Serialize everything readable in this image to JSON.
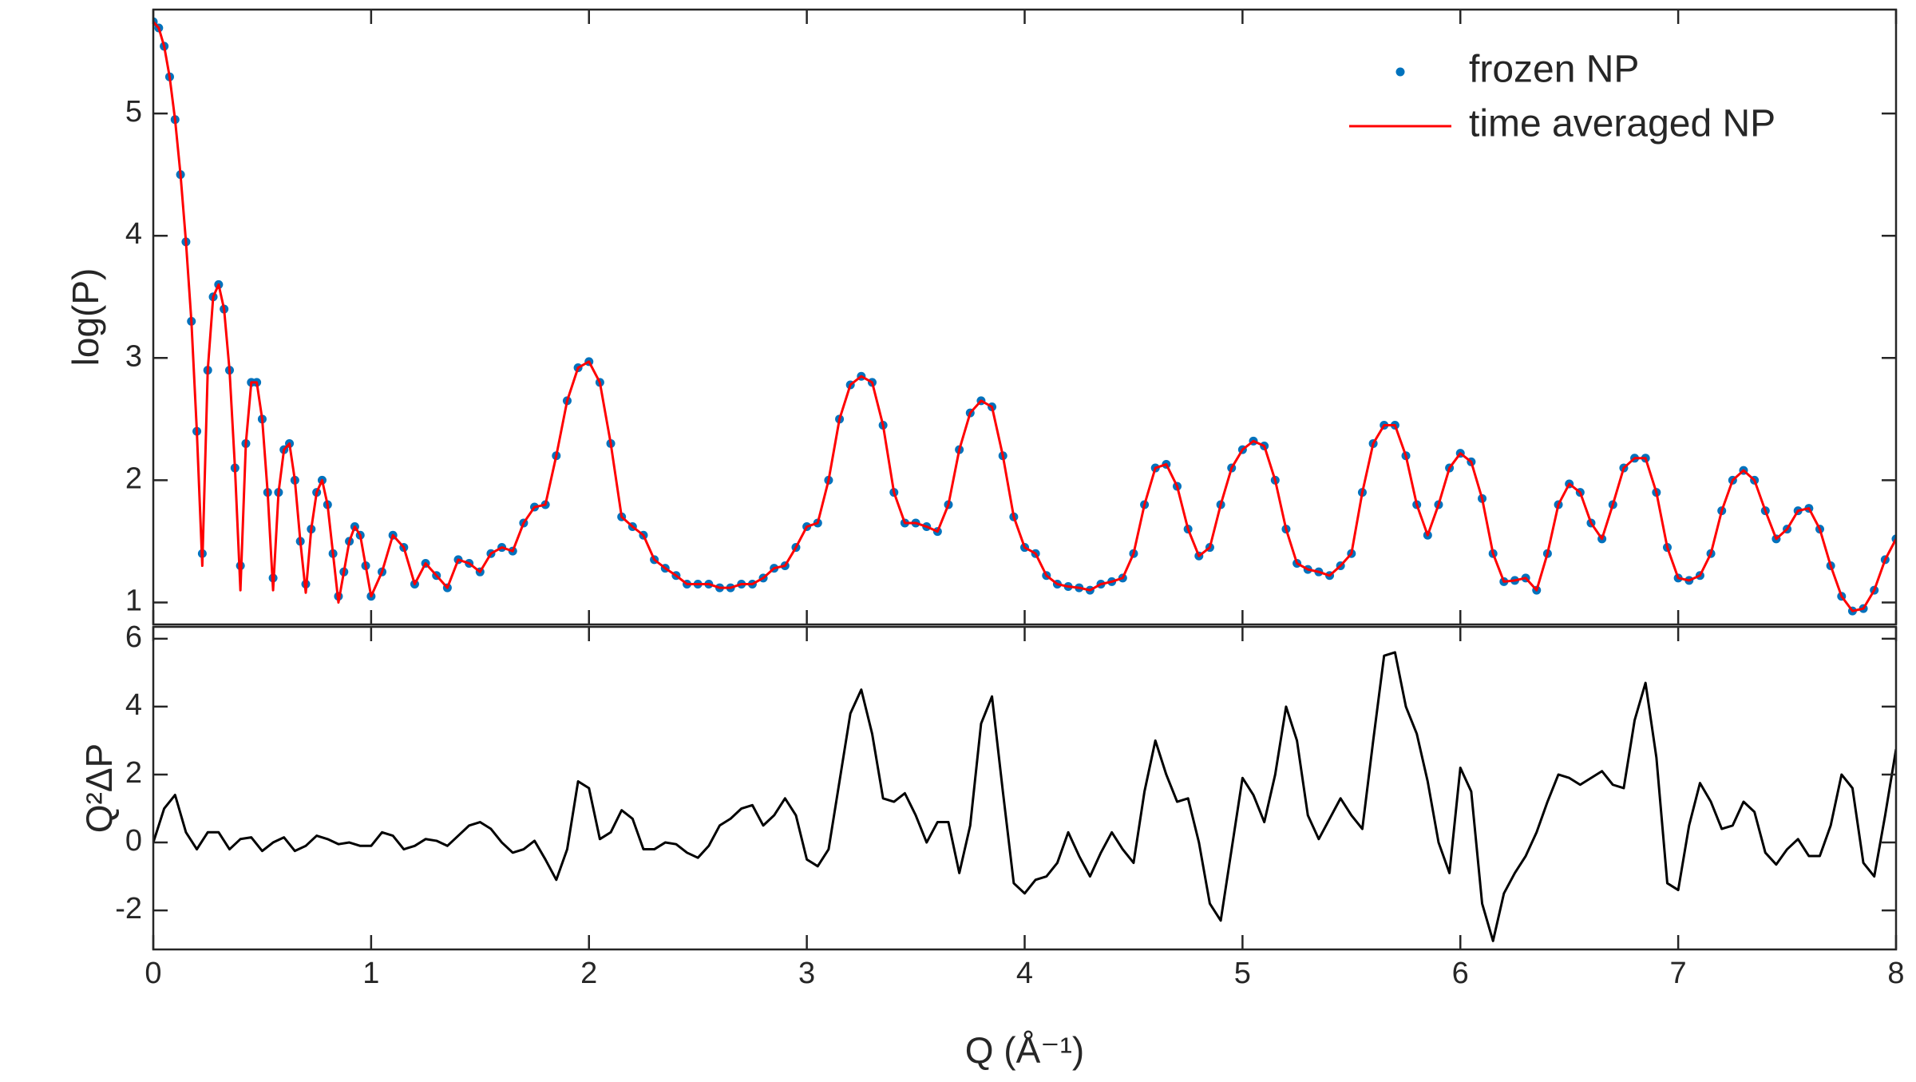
{
  "chart_data": [
    {
      "type": "line",
      "ylabel": "log(P)",
      "x": [
        0,
        0.025,
        0.05,
        0.075,
        0.1,
        0.125,
        0.15,
        0.175,
        0.2,
        0.225,
        0.25,
        0.275,
        0.3,
        0.325,
        0.35,
        0.375,
        0.4,
        0.425,
        0.45,
        0.475,
        0.5,
        0.525,
        0.55,
        0.575,
        0.6,
        0.625,
        0.65,
        0.675,
        0.7,
        0.725,
        0.75,
        0.775,
        0.8,
        0.825,
        0.85,
        0.875,
        0.9,
        0.925,
        0.95,
        0.975,
        1,
        1.05,
        1.1,
        1.15,
        1.2,
        1.25,
        1.3,
        1.35,
        1.4,
        1.45,
        1.5,
        1.55,
        1.6,
        1.65,
        1.7,
        1.75,
        1.8,
        1.85,
        1.9,
        1.95,
        2,
        2.05,
        2.1,
        2.15,
        2.2,
        2.25,
        2.3,
        2.35,
        2.4,
        2.45,
        2.5,
        2.55,
        2.6,
        2.65,
        2.7,
        2.75,
        2.8,
        2.85,
        2.9,
        2.95,
        3,
        3.05,
        3.1,
        3.15,
        3.2,
        3.25,
        3.3,
        3.35,
        3.4,
        3.45,
        3.5,
        3.55,
        3.6,
        3.65,
        3.7,
        3.75,
        3.8,
        3.85,
        3.9,
        3.95,
        4,
        4.05,
        4.1,
        4.15,
        4.2,
        4.25,
        4.3,
        4.35,
        4.4,
        4.45,
        4.5,
        4.55,
        4.6,
        4.65,
        4.7,
        4.75,
        4.8,
        4.85,
        4.9,
        4.95,
        5,
        5.05,
        5.1,
        5.15,
        5.2,
        5.25,
        5.3,
        5.35,
        5.4,
        5.45,
        5.5,
        5.55,
        5.6,
        5.65,
        5.7,
        5.75,
        5.8,
        5.85,
        5.9,
        5.95,
        6,
        6.05,
        6.1,
        6.15,
        6.2,
        6.25,
        6.3,
        6.35,
        6.4,
        6.45,
        6.5,
        6.55,
        6.6,
        6.65,
        6.7,
        6.75,
        6.8,
        6.85,
        6.9,
        6.95,
        7,
        7.05,
        7.1,
        7.15,
        7.2,
        7.25,
        7.3,
        7.35,
        7.4,
        7.45,
        7.5,
        7.55,
        7.6,
        7.65,
        7.7,
        7.75,
        7.8,
        7.85,
        7.9,
        7.95,
        8
      ],
      "series": [
        {
          "name": "frozen NP",
          "color": "#0072bd",
          "style": "markers",
          "values": [
            5.75,
            5.7,
            5.55,
            5.3,
            4.95,
            4.5,
            3.95,
            3.3,
            2.4,
            1.4,
            2.9,
            3.5,
            3.6,
            3.4,
            2.9,
            2.1,
            1.3,
            2.3,
            2.8,
            2.8,
            2.5,
            1.9,
            1.2,
            1.9,
            2.25,
            2.3,
            2.0,
            1.5,
            1.15,
            1.6,
            1.9,
            2.0,
            1.8,
            1.4,
            1.05,
            1.25,
            1.5,
            1.62,
            1.55,
            1.3,
            1.05,
            1.25,
            1.55,
            1.45,
            1.15,
            1.32,
            1.22,
            1.12,
            1.35,
            1.32,
            1.25,
            1.4,
            1.45,
            1.42,
            1.65,
            1.78,
            1.8,
            2.2,
            2.65,
            2.92,
            2.97,
            2.8,
            2.3,
            1.7,
            1.62,
            1.55,
            1.35,
            1.28,
            1.22,
            1.15,
            1.15,
            1.15,
            1.12,
            1.12,
            1.15,
            1.15,
            1.2,
            1.28,
            1.3,
            1.45,
            1.62,
            1.65,
            2.0,
            2.5,
            2.78,
            2.85,
            2.8,
            2.45,
            1.9,
            1.65,
            1.65,
            1.62,
            1.58,
            1.8,
            2.25,
            2.55,
            2.65,
            2.6,
            2.2,
            1.7,
            1.45,
            1.4,
            1.22,
            1.15,
            1.13,
            1.12,
            1.1,
            1.15,
            1.17,
            1.2,
            1.4,
            1.8,
            2.1,
            2.13,
            1.95,
            1.6,
            1.38,
            1.45,
            1.8,
            2.1,
            2.25,
            2.32,
            2.28,
            2.0,
            1.6,
            1.32,
            1.27,
            1.25,
            1.22,
            1.3,
            1.4,
            1.9,
            2.3,
            2.45,
            2.45,
            2.2,
            1.8,
            1.55,
            1.8,
            2.1,
            2.22,
            2.15,
            1.85,
            1.4,
            1.17,
            1.18,
            1.2,
            1.1,
            1.4,
            1.8,
            1.97,
            1.9,
            1.65,
            1.52,
            1.8,
            2.1,
            2.18,
            2.18,
            1.9,
            1.45,
            1.2,
            1.18,
            1.22,
            1.4,
            1.75,
            2.0,
            2.08,
            2.0,
            1.75,
            1.52,
            1.6,
            1.75,
            1.77,
            1.6,
            1.3,
            1.05,
            0.93,
            0.95,
            1.1,
            1.35,
            1.52
          ]
        },
        {
          "name": "time averaged NP",
          "color": "#ff0000",
          "style": "line",
          "values": [
            5.75,
            5.7,
            5.55,
            5.3,
            4.95,
            4.5,
            3.95,
            3.3,
            2.4,
            1.3,
            2.9,
            3.5,
            3.6,
            3.4,
            2.9,
            2.1,
            1.1,
            2.3,
            2.8,
            2.8,
            2.5,
            1.9,
            1.1,
            1.9,
            2.25,
            2.3,
            2.0,
            1.5,
            1.08,
            1.6,
            1.9,
            2.0,
            1.8,
            1.4,
            1.0,
            1.25,
            1.5,
            1.62,
            1.55,
            1.3,
            1.05,
            1.25,
            1.55,
            1.45,
            1.15,
            1.32,
            1.22,
            1.12,
            1.35,
            1.32,
            1.25,
            1.4,
            1.45,
            1.42,
            1.65,
            1.78,
            1.8,
            2.2,
            2.65,
            2.92,
            2.97,
            2.8,
            2.3,
            1.7,
            1.62,
            1.55,
            1.35,
            1.28,
            1.22,
            1.15,
            1.15,
            1.15,
            1.12,
            1.12,
            1.15,
            1.15,
            1.2,
            1.28,
            1.3,
            1.45,
            1.62,
            1.65,
            2.0,
            2.5,
            2.78,
            2.85,
            2.8,
            2.45,
            1.9,
            1.65,
            1.65,
            1.62,
            1.58,
            1.8,
            2.25,
            2.55,
            2.65,
            2.6,
            2.2,
            1.7,
            1.45,
            1.4,
            1.22,
            1.15,
            1.13,
            1.12,
            1.1,
            1.15,
            1.17,
            1.2,
            1.4,
            1.8,
            2.1,
            2.13,
            1.95,
            1.6,
            1.38,
            1.45,
            1.8,
            2.1,
            2.25,
            2.32,
            2.28,
            2.0,
            1.6,
            1.32,
            1.27,
            1.25,
            1.22,
            1.3,
            1.4,
            1.9,
            2.3,
            2.45,
            2.45,
            2.2,
            1.8,
            1.55,
            1.8,
            2.1,
            2.22,
            2.15,
            1.85,
            1.4,
            1.17,
            1.18,
            1.2,
            1.1,
            1.4,
            1.8,
            1.97,
            1.9,
            1.65,
            1.52,
            1.8,
            2.1,
            2.18,
            2.18,
            1.9,
            1.45,
            1.2,
            1.18,
            1.22,
            1.4,
            1.75,
            2.0,
            2.08,
            2.0,
            1.75,
            1.52,
            1.6,
            1.75,
            1.77,
            1.6,
            1.3,
            1.05,
            0.93,
            0.95,
            1.1,
            1.35,
            1.52
          ]
        }
      ],
      "xlim": [
        0,
        8
      ],
      "ylim": [
        0.82,
        5.85
      ],
      "xticks": [
        0,
        1,
        2,
        3,
        4,
        5,
        6,
        7,
        8
      ],
      "xticklabels": false,
      "yticks": [
        1,
        2,
        3,
        4,
        5
      ],
      "legend": "upper right"
    },
    {
      "type": "line",
      "ylabel": "Q²ΔP",
      "xlabel": "Q (Å⁻¹)",
      "x": [
        0,
        0.05,
        0.1,
        0.15,
        0.2,
        0.25,
        0.3,
        0.35,
        0.4,
        0.45,
        0.5,
        0.55,
        0.6,
        0.65,
        0.7,
        0.75,
        0.8,
        0.85,
        0.9,
        0.95,
        1,
        1.05,
        1.1,
        1.15,
        1.2,
        1.25,
        1.3,
        1.35,
        1.4,
        1.45,
        1.5,
        1.55,
        1.6,
        1.65,
        1.7,
        1.75,
        1.8,
        1.85,
        1.9,
        1.95,
        2,
        2.05,
        2.1,
        2.15,
        2.2,
        2.25,
        2.3,
        2.35,
        2.4,
        2.45,
        2.5,
        2.55,
        2.6,
        2.65,
        2.7,
        2.75,
        2.8,
        2.85,
        2.9,
        2.95,
        3,
        3.05,
        3.1,
        3.15,
        3.2,
        3.25,
        3.3,
        3.35,
        3.4,
        3.45,
        3.5,
        3.55,
        3.6,
        3.65,
        3.7,
        3.75,
        3.8,
        3.85,
        3.9,
        3.95,
        4,
        4.05,
        4.1,
        4.15,
        4.2,
        4.25,
        4.3,
        4.35,
        4.4,
        4.45,
        4.5,
        4.55,
        4.6,
        4.65,
        4.7,
        4.75,
        4.8,
        4.85,
        4.9,
        4.95,
        5,
        5.05,
        5.1,
        5.15,
        5.2,
        5.25,
        5.3,
        5.35,
        5.4,
        5.45,
        5.5,
        5.55,
        5.6,
        5.65,
        5.7,
        5.75,
        5.8,
        5.85,
        5.9,
        5.95,
        6,
        6.05,
        6.1,
        6.15,
        6.2,
        6.25,
        6.3,
        6.35,
        6.4,
        6.45,
        6.5,
        6.55,
        6.6,
        6.65,
        6.7,
        6.75,
        6.8,
        6.85,
        6.9,
        6.95,
        7,
        7.05,
        7.1,
        7.15,
        7.2,
        7.25,
        7.3,
        7.35,
        7.4,
        7.45,
        7.5,
        7.55,
        7.6,
        7.65,
        7.7,
        7.75,
        7.8,
        7.85,
        7.9,
        7.95,
        8
      ],
      "series": [
        {
          "color": "#000000",
          "style": "line",
          "values": [
            0,
            1.0,
            1.4,
            0.3,
            -0.2,
            0.3,
            0.3,
            -0.2,
            0.1,
            0.15,
            -0.25,
            0,
            0.15,
            -0.25,
            -0.1,
            0.2,
            0.1,
            -0.05,
            0,
            -0.1,
            -0.1,
            0.3,
            0.2,
            -0.2,
            -0.1,
            0.1,
            0.05,
            -0.1,
            0.2,
            0.5,
            0.6,
            0.4,
            0,
            -0.3,
            -0.2,
            0.05,
            -0.5,
            -1.1,
            -0.2,
            1.8,
            1.6,
            0.1,
            0.3,
            0.95,
            0.7,
            -0.2,
            -0.2,
            0,
            -0.05,
            -0.3,
            -0.45,
            -0.1,
            0.5,
            0.7,
            1.0,
            1.1,
            0.5,
            0.8,
            1.3,
            0.8,
            -0.5,
            -0.7,
            -0.2,
            1.8,
            3.8,
            4.5,
            3.2,
            1.3,
            1.2,
            1.45,
            0.8,
            0,
            0.6,
            0.6,
            -0.9,
            0.5,
            3.5,
            4.3,
            1.5,
            -1.2,
            -1.5,
            -1.1,
            -1.0,
            -0.6,
            0.3,
            -0.4,
            -1.0,
            -0.3,
            0.3,
            -0.2,
            -0.6,
            1.5,
            3.0,
            2.0,
            1.2,
            1.3,
            0,
            -1.8,
            -2.3,
            -0.2,
            1.9,
            1.4,
            0.6,
            2.0,
            4.0,
            3.0,
            0.8,
            0.1,
            0.7,
            1.3,
            0.8,
            0.4,
            3.0,
            5.5,
            5.6,
            4.0,
            3.2,
            1.8,
            0,
            -0.9,
            2.2,
            1.5,
            -1.8,
            -2.9,
            -1.5,
            -0.9,
            -0.4,
            0.3,
            1.2,
            2.0,
            1.9,
            1.7,
            1.9,
            2.1,
            1.7,
            1.6,
            3.6,
            4.7,
            2.5,
            -1.2,
            -1.4,
            0.5,
            1.75,
            1.2,
            0.4,
            0.5,
            1.2,
            0.9,
            -0.3,
            -0.65,
            -0.2,
            0.1,
            -0.4,
            -0.4,
            0.5,
            2.0,
            1.6,
            -0.6,
            -1.0,
            0.8,
            2.75
          ]
        }
      ],
      "xlim": [
        0,
        8
      ],
      "ylim": [
        -3.15,
        6.35
      ],
      "xticks": [
        0,
        1,
        2,
        3,
        4,
        5,
        6,
        7,
        8
      ],
      "yticks": [
        -2,
        0,
        2,
        4,
        6
      ]
    }
  ]
}
